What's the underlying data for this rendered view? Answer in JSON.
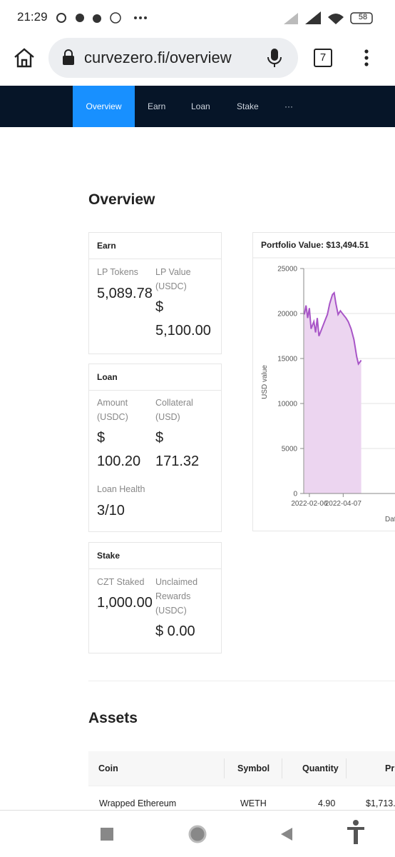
{
  "status_bar": {
    "time": "21:29",
    "battery": "58"
  },
  "browser": {
    "url": "curvezero.fi/overview",
    "tab_count": "7"
  },
  "nav": {
    "items": [
      "Overview",
      "Earn",
      "Loan",
      "Stake",
      "···"
    ]
  },
  "overview": {
    "title": "Overview",
    "earn": {
      "title": "Earn",
      "lp_tokens_label": "LP Tokens",
      "lp_tokens": "5,089.78",
      "lp_value_label": "LP Value (USDC)",
      "lp_value": "$ 5,100.00"
    },
    "loan": {
      "title": "Loan",
      "amount_label": "Amount (USDC)",
      "amount": "$ 100.20",
      "collateral_label": "Collateral (USD)",
      "collateral": "$ 171.32",
      "health_label": "Loan Health",
      "health": "3/10"
    },
    "stake": {
      "title": "Stake",
      "staked_label": "CZT Staked",
      "staked": "1,000.00",
      "rewards_label": "Unclaimed Rewards (USDC)",
      "rewards": "$ 0.00"
    }
  },
  "portfolio_chart": {
    "type": "line",
    "title": "Portfolio Value: $13,494.51",
    "x_label": "Date",
    "y_label": "USD value",
    "color": "#a855c7",
    "fill": "#ecd5f0",
    "grid": true,
    "x": [
      -9,
      -6,
      -3,
      0,
      3,
      8,
      11,
      14,
      17,
      22,
      27,
      32,
      36,
      41,
      44,
      47,
      51,
      55,
      60,
      65,
      69,
      74,
      79,
      84,
      87,
      92
    ],
    "values": [
      19900,
      20900,
      19500,
      20600,
      18300,
      19100,
      17900,
      19500,
      17500,
      18300,
      19100,
      19900,
      21100,
      22100,
      22300,
      21100,
      19900,
      20300,
      19900,
      19500,
      19100,
      18300,
      17100,
      15200,
      14400,
      14800
    ],
    "xlim": [
      -10,
      200
    ],
    "xticks": [
      {
        "value": 0,
        "label": "2022-02-06"
      },
      {
        "value": 60,
        "label": "2022-04-07"
      }
    ],
    "ylim": [
      0,
      25000
    ],
    "yticks": [
      0,
      5000,
      10000,
      15000,
      20000,
      25000
    ]
  },
  "assets": {
    "title": "Assets",
    "columns": [
      "Coin",
      "Symbol",
      "Quantity",
      "Price"
    ],
    "rows": [
      [
        "Wrapped Ethereum",
        "WETH",
        "4.90",
        "$1,713."
      ]
    ]
  }
}
